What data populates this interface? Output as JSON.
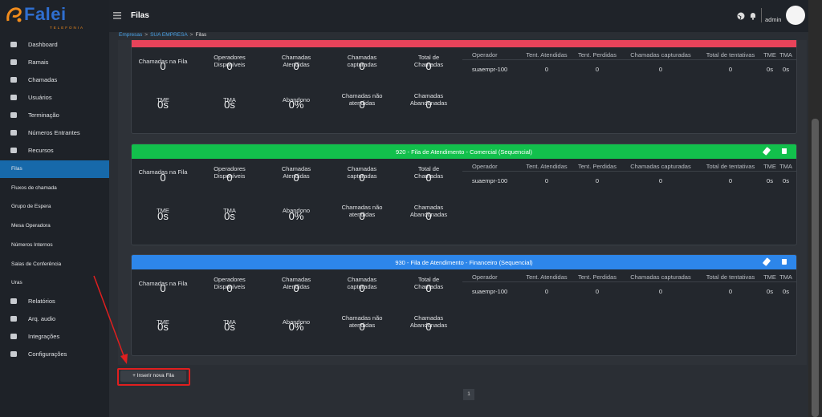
{
  "logo": {
    "brand": "Falei",
    "tagline": "TELEFONIA"
  },
  "header": {
    "title": "Filas",
    "user": "admin"
  },
  "breadcrumb": {
    "items": [
      "Empresas",
      "SUA EMPRESA",
      "Filas"
    ],
    "separator": ">"
  },
  "sidebar": {
    "items": [
      {
        "label": "Dashboard"
      },
      {
        "label": "Ramais"
      },
      {
        "label": "Chamadas"
      },
      {
        "label": "Usuários"
      },
      {
        "label": "Terminação"
      },
      {
        "label": "Números Entrantes"
      },
      {
        "label": "Recursos",
        "children": [
          "Filas",
          "Fluxos de chamada",
          "Grupo de Espera",
          "Mesa Operadora",
          "Números Internos",
          "Salas de Conferência",
          "Uras"
        ],
        "active": "Filas"
      },
      {
        "label": "Relatórios"
      },
      {
        "label": "Arq. audio"
      },
      {
        "label": "Integrações"
      },
      {
        "label": "Configurações"
      }
    ]
  },
  "queues": [
    {
      "color": "#e8435a",
      "stats": [
        {
          "label": "Chamadas na Fila",
          "value": "0"
        },
        {
          "label": "Operadores Disponíveis",
          "value": "0"
        },
        {
          "label": "Chamadas Atendidas",
          "value": "0"
        },
        {
          "label": "Chamadas capturadas",
          "value": "0"
        },
        {
          "label": "Total de Chamadas",
          "value": "0"
        },
        {
          "label": "TME",
          "value": "0s"
        },
        {
          "label": "TMA",
          "value": "0s"
        },
        {
          "label": "Abandono",
          "value": "0%"
        },
        {
          "label": "Chamadas não atendidas",
          "value": "0"
        },
        {
          "label": "Chamadas Abandonadas",
          "value": "0"
        }
      ],
      "table": {
        "columns": [
          "Operador",
          "Tent. Atendidas",
          "Tent. Perdidas",
          "Chamadas capturadas",
          "Total de tentativas",
          "TME",
          "TMA"
        ],
        "rows": [
          [
            "suaempr-100",
            "0",
            "0",
            "0",
            "0",
            "0s",
            "0s"
          ]
        ]
      }
    },
    {
      "title": "920 - Fila de Atendimento - Comercial (Sequencial)",
      "color": "#12c04c",
      "stats": [
        {
          "label": "Chamadas na Fila",
          "value": "0"
        },
        {
          "label": "Operadores Disponíveis",
          "value": "0"
        },
        {
          "label": "Chamadas Atendidas",
          "value": "0"
        },
        {
          "label": "Chamadas capturadas",
          "value": "0"
        },
        {
          "label": "Total de Chamadas",
          "value": "0"
        },
        {
          "label": "TME",
          "value": "0s"
        },
        {
          "label": "TMA",
          "value": "0s"
        },
        {
          "label": "Abandono",
          "value": "0%"
        },
        {
          "label": "Chamadas não atendidas",
          "value": "0"
        },
        {
          "label": "Chamadas Abandonadas",
          "value": "0"
        }
      ],
      "table": {
        "columns": [
          "Operador",
          "Tent. Atendidas",
          "Tent. Perdidas",
          "Chamadas capturadas",
          "Total de tentativas",
          "TME",
          "TMA"
        ],
        "rows": [
          [
            "suaempr-100",
            "0",
            "0",
            "0",
            "0",
            "0s",
            "0s"
          ]
        ]
      }
    },
    {
      "title": "930 - Fila de Atendimento - Financeiro (Sequencial)",
      "color": "#2d86ea",
      "stats": [
        {
          "label": "Chamadas na Fila",
          "value": "0"
        },
        {
          "label": "Operadores Disponíveis",
          "value": "0"
        },
        {
          "label": "Chamadas Atendidas",
          "value": "0"
        },
        {
          "label": "Chamadas capturadas",
          "value": "0"
        },
        {
          "label": "Total de Chamadas",
          "value": "0"
        },
        {
          "label": "TME",
          "value": "0s"
        },
        {
          "label": "TMA",
          "value": "0s"
        },
        {
          "label": "Abandono",
          "value": "0%"
        },
        {
          "label": "Chamadas não atendidas",
          "value": "0"
        },
        {
          "label": "Chamadas Abandonadas",
          "value": "0"
        }
      ],
      "table": {
        "columns": [
          "Operador",
          "Tent. Atendidas",
          "Tent. Perdidas",
          "Chamadas capturadas",
          "Total de tentativas",
          "TME",
          "TMA"
        ],
        "rows": [
          [
            "suaempr-100",
            "0",
            "0",
            "0",
            "0",
            "0s",
            "0s"
          ]
        ]
      }
    }
  ],
  "add_button": "+ Inserir nova Fila",
  "pagination": [
    "1"
  ]
}
